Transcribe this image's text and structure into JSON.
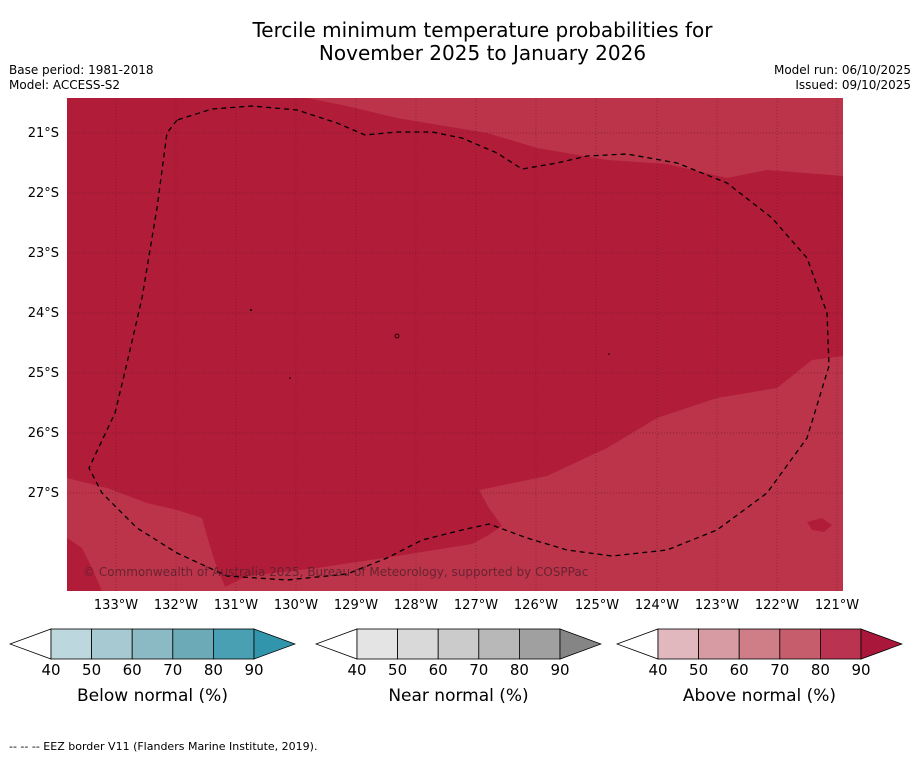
{
  "title_line1": "Tercile minimum temperature probabilities for",
  "title_line2": "November 2025 to January 2026",
  "base_period": "Base period: 1981-2018",
  "model": "Model: ACCESS-S2",
  "model_run": "Model run: 06/10/2025",
  "issued": "Issued: 09/10/2025",
  "lat_labels": [
    "21°S",
    "22°S",
    "23°S",
    "24°S",
    "25°S",
    "26°S",
    "27°S"
  ],
  "lon_labels": [
    "133°W",
    "132°W",
    "131°W",
    "130°W",
    "129°W",
    "128°W",
    "127°W",
    "126°W",
    "125°W",
    "124°W",
    "123°W",
    "122°W",
    "121°W"
  ],
  "copyright": "© Commonwealth of Australia 2025, Bureau of Meteorology, supported by COSPPac",
  "legends": [
    {
      "label": "Below normal (%)",
      "ticks": [
        "40",
        "50",
        "60",
        "70",
        "80",
        "90"
      ],
      "colors": [
        "#bdd7de",
        "#a7cad2",
        "#8bb9c4",
        "#6caab8",
        "#48a0b2",
        "#3195ab"
      ]
    },
    {
      "label": "Near normal (%)",
      "ticks": [
        "40",
        "50",
        "60",
        "70",
        "80",
        "90"
      ],
      "colors": [
        "#e4e4e4",
        "#d9d9d9",
        "#cbcbcb",
        "#b8b8b8",
        "#a0a0a0",
        "#858585"
      ]
    },
    {
      "label": "Above normal (%)",
      "ticks": [
        "40",
        "50",
        "60",
        "70",
        "80",
        "90"
      ],
      "colors": [
        "#e2b8bf",
        "#d79ba3",
        "#cf7e87",
        "#c65d6c",
        "#ba3350",
        "#a9183a"
      ]
    }
  ],
  "map_colors": {
    "above_80_90": "#b11c38",
    "above_70_80": "#bc3449",
    "grid": "#6e1a28",
    "eez": "#000000"
  },
  "footer": "--  --  -- EEZ border V11 (Flanders Marine Institute, 2019)."
}
